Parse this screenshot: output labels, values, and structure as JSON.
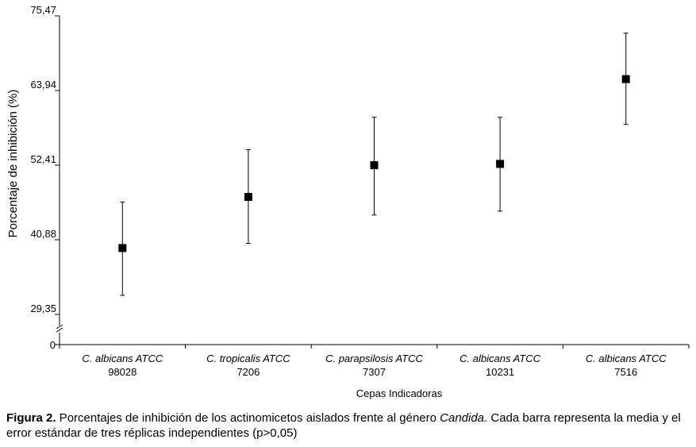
{
  "chart_data": {
    "type": "scatter",
    "title": "",
    "xlabel": "Cepas Indicadoras",
    "ylabel": "Porcentaje de inhibición (%)",
    "categories": [
      [
        "C. albicans ATCC",
        "98028"
      ],
      [
        "C. tropicalis ATCC",
        "7206"
      ],
      [
        "C. parapsilosis ATCC",
        "7307"
      ],
      [
        "C. albicans ATCC",
        "10231"
      ],
      [
        "C. albicans ATCC",
        "7516"
      ]
    ],
    "series": [
      {
        "values": [
          39.6,
          47.5,
          52.4,
          52.6,
          65.7
        ],
        "error_low": [
          32.3,
          40.3,
          44.7,
          45.3,
          58.7
        ],
        "error_high": [
          46.7,
          54.8,
          59.8,
          59.8,
          72.8
        ]
      }
    ],
    "y_ticks": [
      "75,47",
      "63,94",
      "52,41",
      "40,88",
      "29,35"
    ],
    "y_tick_values": [
      75.47,
      63.94,
      52.41,
      40.88,
      29.35
    ],
    "y_zero_label": "0",
    "ylim": [
      24.3,
      75.47
    ],
    "axis_break": true,
    "grid": false,
    "legend": "none",
    "colors": {
      "marker": "#000000",
      "axis": "#000000"
    }
  },
  "caption": {
    "lead": "Figura 2.",
    "text_before": " Porcentajes de inhibición de los actinomicetos aislados frente al género ",
    "italic": "Candida",
    "text_after": ". Cada barra representa la media y el error estándar de tres réplicas independientes (p>0,05)"
  }
}
